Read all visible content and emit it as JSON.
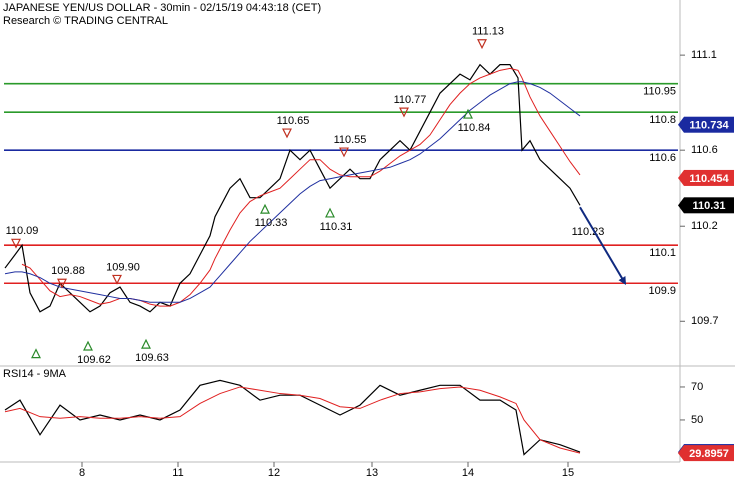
{
  "chart_data": [
    {
      "type": "line",
      "title": "JAPANESE YEN/US DOLLAR - 30min - 02/15/19 04:43:18 (CET)",
      "subtitle": "Research © TRADING CENTRAL",
      "x": [
        2.5,
        7.5,
        11,
        15,
        20,
        25,
        30,
        35,
        40,
        45,
        50,
        55,
        60,
        65,
        70,
        75,
        80,
        85,
        90,
        95,
        100,
        105,
        107.5,
        110,
        115,
        120,
        125,
        130,
        135,
        140,
        145,
        150,
        155,
        160,
        165,
        170,
        175,
        180,
        185,
        190,
        195,
        200,
        205,
        210,
        215,
        220,
        225,
        230,
        235,
        240,
        245,
        250,
        255,
        259,
        261,
        265,
        270,
        275,
        280,
        285,
        290
      ],
      "series": [
        {
          "color": "#000000",
          "values": [
            109.98,
            110.05,
            110.1,
            109.85,
            109.75,
            109.78,
            109.9,
            109.85,
            109.8,
            109.75,
            109.78,
            109.85,
            109.88,
            109.8,
            109.78,
            109.75,
            109.8,
            109.78,
            109.9,
            109.95,
            110.05,
            110.15,
            110.25,
            110.3,
            110.4,
            110.45,
            110.35,
            110.35,
            110.4,
            110.45,
            110.6,
            110.55,
            110.6,
            110.5,
            110.4,
            110.45,
            110.5,
            110.45,
            110.45,
            110.55,
            110.6,
            110.65,
            110.6,
            110.7,
            110.8,
            110.9,
            110.95,
            111.0,
            110.97,
            111.05,
            111.0,
            111.05,
            111.05,
            110.98,
            110.6,
            110.65,
            110.55,
            110.5,
            110.45,
            110.4,
            110.31
          ]
        },
        {
          "color": "#e02020",
          "values": [
            null,
            null,
            110.0,
            109.98,
            109.92,
            109.86,
            109.83,
            109.84,
            109.83,
            109.81,
            109.79,
            109.8,
            109.82,
            109.82,
            109.81,
            109.79,
            109.78,
            109.78,
            109.8,
            109.84,
            109.9,
            109.97,
            110.03,
            110.08,
            110.18,
            110.27,
            110.33,
            110.36,
            110.38,
            110.4,
            110.45,
            110.5,
            110.55,
            110.55,
            110.5,
            110.47,
            110.46,
            110.46,
            110.46,
            110.49,
            110.53,
            110.57,
            110.6,
            110.63,
            110.68,
            110.76,
            110.84,
            110.9,
            110.95,
            110.98,
            111.0,
            111.02,
            111.03,
            111.02,
            110.98,
            110.88,
            110.78,
            110.7,
            110.62,
            110.54,
            110.47
          ]
        },
        {
          "color": "#2030a0",
          "values": [
            109.95,
            109.96,
            109.96,
            109.95,
            109.93,
            109.9,
            109.88,
            109.87,
            109.86,
            109.85,
            109.84,
            109.83,
            109.82,
            109.82,
            109.81,
            109.8,
            109.8,
            109.8,
            109.8,
            109.82,
            109.85,
            109.88,
            109.91,
            109.94,
            110.0,
            110.06,
            110.12,
            110.17,
            110.22,
            110.27,
            110.32,
            110.37,
            110.41,
            110.44,
            110.45,
            110.46,
            110.47,
            110.48,
            110.49,
            110.5,
            110.51,
            110.53,
            110.55,
            110.58,
            110.62,
            110.66,
            110.71,
            110.76,
            110.81,
            110.85,
            110.89,
            110.92,
            110.95,
            110.96,
            110.96,
            110.95,
            110.93,
            110.9,
            110.86,
            110.82,
            110.78
          ]
        }
      ],
      "xlim": [
        0,
        340
      ],
      "ylim": [
        109.47,
        111.39
      ],
      "yticks": [
        109.7,
        110.2,
        110.6,
        111.1
      ],
      "levels": [
        {
          "value": 110.95,
          "color": "#2a9a2a"
        },
        {
          "value": 110.8,
          "color": "#2a9a2a"
        },
        {
          "value": 110.6,
          "color": "#1a2aa0"
        },
        {
          "value": 110.1,
          "color": "#e02020"
        },
        {
          "value": 109.9,
          "color": "#e02020"
        }
      ],
      "markers": [
        {
          "value": 110.734,
          "color": "#1a2aa0"
        },
        {
          "value": 110.454,
          "color": "#e03030"
        },
        {
          "value": 110.31,
          "color": "#000000"
        }
      ],
      "annotations": [
        {
          "text": "110.09",
          "x": 8,
          "y": 110.11,
          "dir": "down",
          "color": "#c03020"
        },
        {
          "text": "109.88",
          "x": 31,
          "y": 109.9,
          "dir": "down",
          "color": "#c03020"
        },
        {
          "text": "109.90",
          "x": 58.5,
          "y": 109.92,
          "dir": "down",
          "color": "#c03020"
        },
        {
          "x": 18,
          "y": 109.53,
          "dir": "up",
          "color": "#2a8a2a"
        },
        {
          "text": "109.62",
          "x": 44,
          "y": 109.57,
          "dir": "up",
          "color": "#2a8a2a"
        },
        {
          "text": "109.63",
          "x": 73,
          "y": 109.58,
          "dir": "up",
          "color": "#2a8a2a"
        },
        {
          "text": "110.33",
          "x": 132.5,
          "y": 110.29,
          "dir": "up",
          "color": "#2a8a2a"
        },
        {
          "text": "110.65",
          "x": 143.5,
          "y": 110.69,
          "dir": "down",
          "color": "#c03020"
        },
        {
          "text": "110.31",
          "x": 165,
          "y": 110.27,
          "dir": "up",
          "color": "#2a8a2a"
        },
        {
          "text": "110.55",
          "x": 172,
          "y": 110.59,
          "dir": "down",
          "color": "#c03020"
        },
        {
          "text": "110.77",
          "x": 202,
          "y": 110.8,
          "dir": "down",
          "color": "#c03020"
        },
        {
          "text": "110.84",
          "x": 234,
          "y": 110.79,
          "dir": "up",
          "color": "#2a8a2a"
        },
        {
          "text": "111.13",
          "x": 241,
          "y": 111.16,
          "dir": "down",
          "color": "#c03020"
        },
        {
          "text": "110.23",
          "x": 294,
          "y": 110.17
        }
      ],
      "projection": {
        "x": [
          290,
          312.5
        ],
        "values": [
          110.3,
          109.9
        ],
        "color": "#102a80"
      }
    },
    {
      "type": "line",
      "title": "RSI14 - 9MA",
      "x": [
        2.5,
        10,
        20,
        30,
        40,
        50,
        60,
        70,
        80,
        90,
        100,
        110,
        120,
        130,
        140,
        150,
        160,
        170,
        180,
        190,
        200,
        210,
        220,
        230,
        240,
        250,
        258,
        262,
        270,
        280,
        290
      ],
      "series": [
        {
          "color": "#000000",
          "values": [
            56,
            62,
            41,
            59,
            50,
            53,
            50,
            53,
            50,
            56,
            71,
            74,
            71,
            62,
            65,
            65,
            59,
            53,
            59,
            71,
            65,
            68,
            71,
            71,
            62,
            62,
            56,
            29,
            38,
            35,
            30.5
          ]
        },
        {
          "color": "#e02020",
          "values": [
            55,
            57,
            52,
            51,
            52,
            51,
            51,
            52,
            51,
            52,
            60,
            66,
            70,
            68,
            66,
            65,
            63,
            58,
            57,
            62,
            66,
            67,
            69,
            70,
            68,
            64,
            60,
            50,
            38,
            33,
            29.9
          ]
        }
      ],
      "xlim": [
        0,
        340
      ],
      "ylim": [
        24.5,
        81.5
      ],
      "yticks": [
        50,
        70
      ],
      "xticks": [
        {
          "value": 41,
          "label": "8"
        },
        {
          "value": 89,
          "label": "11"
        },
        {
          "value": 137,
          "label": "12"
        },
        {
          "value": 186,
          "label": "13"
        },
        {
          "value": 234,
          "label": "14"
        },
        {
          "value": 284,
          "label": "15"
        }
      ],
      "markers": [
        {
          "value": 30.5252,
          "color": "#1a2aa0"
        },
        {
          "value": 29.8957,
          "color": "#e03030"
        }
      ]
    }
  ]
}
